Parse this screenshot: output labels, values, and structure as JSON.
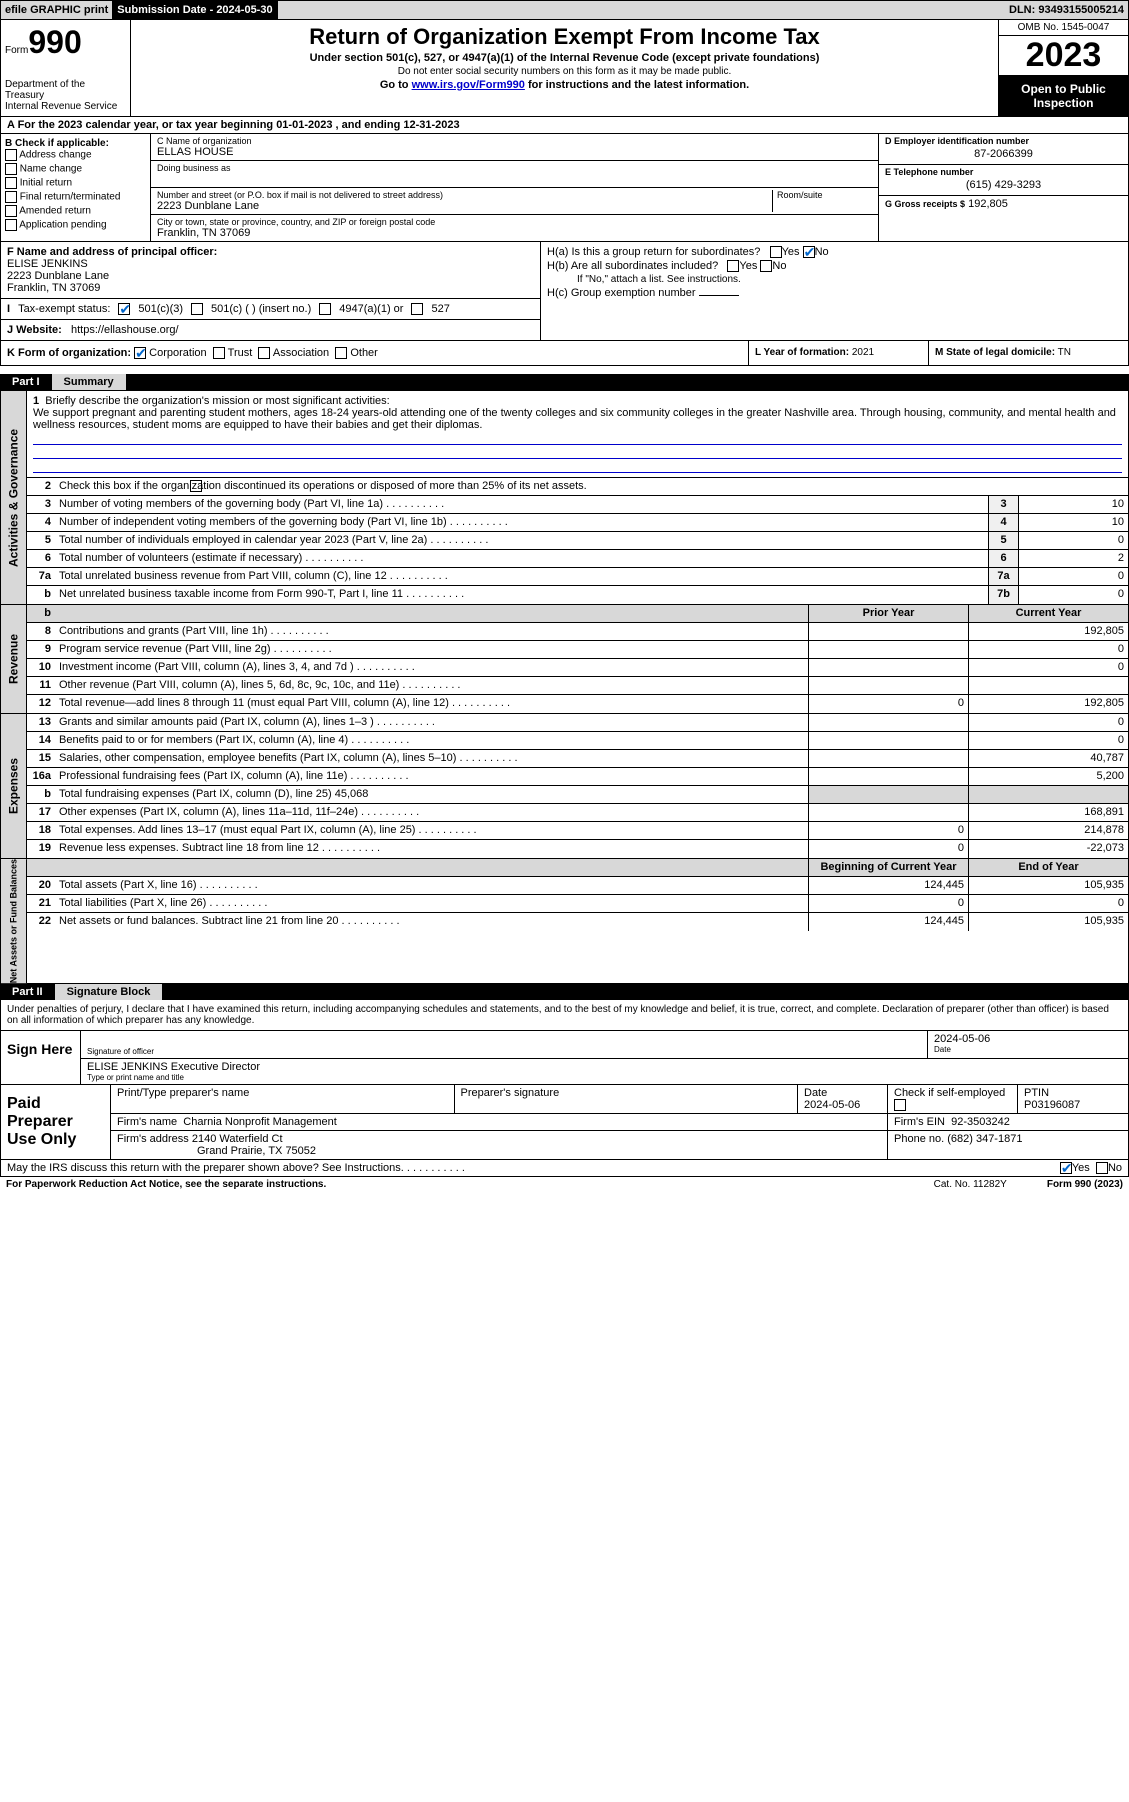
{
  "topbar": {
    "efile": "efile GRAPHIC print",
    "submission": "Submission Date - 2024-05-30",
    "dln": "DLN: 93493155005214"
  },
  "header": {
    "form_label": "Form",
    "form_no": "990",
    "title": "Return of Organization Exempt From Income Tax",
    "sub": "Under section 501(c), 527, or 4947(a)(1) of the Internal Revenue Code (except private foundations)",
    "sub2": "Do not enter social security numbers on this form as it may be made public.",
    "link_pre": "Go to ",
    "link": "www.irs.gov/Form990",
    "link_post": " for instructions and the latest information.",
    "dept": "Department of the Treasury\nInternal Revenue Service",
    "omb": "OMB No. 1545-0047",
    "year": "2023",
    "open": "Open to Public Inspection"
  },
  "section_a": "A  For the 2023 calendar year, or tax year beginning 01-01-2023    , and ending 12-31-2023",
  "b": {
    "label": "B Check if applicable:",
    "opts": [
      "Address change",
      "Name change",
      "Initial return",
      "Final return/terminated",
      "Amended return",
      "Application pending"
    ]
  },
  "c": {
    "name_lbl": "C Name of organization",
    "name": "ELLAS HOUSE",
    "dba_lbl": "Doing business as",
    "addr_lbl": "Number and street (or P.O. box if mail is not delivered to street address)",
    "room_lbl": "Room/suite",
    "addr": "2223 Dunblane Lane",
    "city_lbl": "City or town, state or province, country, and ZIP or foreign postal code",
    "city": "Franklin, TN  37069"
  },
  "d": {
    "lbl": "D Employer identification number",
    "val": "87-2066399"
  },
  "e": {
    "lbl": "E Telephone number",
    "val": "(615) 429-3293"
  },
  "g": {
    "lbl": "G Gross receipts $",
    "val": "192,805"
  },
  "f": {
    "lbl": "F  Name and address of principal officer:",
    "name": "ELISE JENKINS",
    "addr1": "2223 Dunblane Lane",
    "addr2": "Franklin, TN  37069"
  },
  "i": {
    "lbl": "Tax-exempt status:",
    "o1": "501(c)(3)",
    "o2": "501(c) (  ) (insert no.)",
    "o3": "4947(a)(1) or",
    "o4": "527"
  },
  "j": {
    "lbl": "J     Website:",
    "val": "https://ellashouse.org/"
  },
  "h": {
    "a": "H(a)  Is this a group return for subordinates?",
    "b": "H(b)  Are all subordinates included?",
    "bnote": "If \"No,\" attach a list. See instructions.",
    "c": "H(c)  Group exemption number"
  },
  "k": {
    "lbl": "K Form of organization:",
    "o1": "Corporation",
    "o2": "Trust",
    "o3": "Association",
    "o4": "Other"
  },
  "l": {
    "lbl": "L Year of formation:",
    "val": "2021"
  },
  "m": {
    "lbl": "M State of legal domicile:",
    "val": "TN"
  },
  "part1": {
    "num": "Part I",
    "title": "Summary"
  },
  "summary": {
    "q1": "Briefly describe the organization's mission or most significant activities:",
    "mission": "We support pregnant and parenting student mothers, ages 18-24 years-old attending one of the twenty colleges and six community colleges in the greater Nashville area. Through housing, community, and mental health and wellness resources, student moms are equipped to have their babies and get their diplomas.",
    "q2": "Check this box        if the organization discontinued its operations or disposed of more than 25% of its net assets.",
    "rows_gov": [
      {
        "n": "3",
        "d": "Number of voting members of the governing body (Part VI, line 1a)",
        "ln": "3",
        "v": "10"
      },
      {
        "n": "4",
        "d": "Number of independent voting members of the governing body (Part VI, line 1b)",
        "ln": "4",
        "v": "10"
      },
      {
        "n": "5",
        "d": "Total number of individuals employed in calendar year 2023 (Part V, line 2a)",
        "ln": "5",
        "v": "0"
      },
      {
        "n": "6",
        "d": "Total number of volunteers (estimate if necessary)",
        "ln": "6",
        "v": "2"
      },
      {
        "n": "7a",
        "d": "Total unrelated business revenue from Part VIII, column (C), line 12",
        "ln": "7a",
        "v": "0"
      },
      {
        "n": "b",
        "d": "Net unrelated business taxable income from Form 990-T, Part I, line 11",
        "ln": "7b",
        "v": "0"
      }
    ],
    "col_prior": "Prior Year",
    "col_curr": "Current Year",
    "rows_rev": [
      {
        "n": "8",
        "d": "Contributions and grants (Part VIII, line 1h)",
        "p": "",
        "c": "192,805"
      },
      {
        "n": "9",
        "d": "Program service revenue (Part VIII, line 2g)",
        "p": "",
        "c": "0"
      },
      {
        "n": "10",
        "d": "Investment income (Part VIII, column (A), lines 3, 4, and 7d )",
        "p": "",
        "c": "0"
      },
      {
        "n": "11",
        "d": "Other revenue (Part VIII, column (A), lines 5, 6d, 8c, 9c, 10c, and 11e)",
        "p": "",
        "c": ""
      },
      {
        "n": "12",
        "d": "Total revenue—add lines 8 through 11 (must equal Part VIII, column (A), line 12)",
        "p": "0",
        "c": "192,805"
      }
    ],
    "rows_exp": [
      {
        "n": "13",
        "d": "Grants and similar amounts paid (Part IX, column (A), lines 1–3 )",
        "p": "",
        "c": "0"
      },
      {
        "n": "14",
        "d": "Benefits paid to or for members (Part IX, column (A), line 4)",
        "p": "",
        "c": "0"
      },
      {
        "n": "15",
        "d": "Salaries, other compensation, employee benefits (Part IX, column (A), lines 5–10)",
        "p": "",
        "c": "40,787"
      },
      {
        "n": "16a",
        "d": "Professional fundraising fees (Part IX, column (A), line 11e)",
        "p": "",
        "c": "5,200"
      },
      {
        "n": "b",
        "d": "Total fundraising expenses (Part IX, column (D), line 25) 45,068",
        "p": "shade",
        "c": "shade"
      },
      {
        "n": "17",
        "d": "Other expenses (Part IX, column (A), lines 11a–11d, 11f–24e)",
        "p": "",
        "c": "168,891"
      },
      {
        "n": "18",
        "d": "Total expenses. Add lines 13–17 (must equal Part IX, column (A), line 25)",
        "p": "0",
        "c": "214,878"
      },
      {
        "n": "19",
        "d": "Revenue less expenses. Subtract line 18 from line 12",
        "p": "0",
        "c": "-22,073"
      }
    ],
    "col_beg": "Beginning of Current Year",
    "col_end": "End of Year",
    "rows_net": [
      {
        "n": "20",
        "d": "Total assets (Part X, line 16)",
        "p": "124,445",
        "c": "105,935"
      },
      {
        "n": "21",
        "d": "Total liabilities (Part X, line 26)",
        "p": "0",
        "c": "0"
      },
      {
        "n": "22",
        "d": "Net assets or fund balances. Subtract line 21 from line 20",
        "p": "124,445",
        "c": "105,935"
      }
    ],
    "side_gov": "Activities & Governance",
    "side_rev": "Revenue",
    "side_exp": "Expenses",
    "side_net": "Net Assets or Fund Balances"
  },
  "part2": {
    "num": "Part II",
    "title": "Signature Block"
  },
  "sig": {
    "decl": "Under penalties of perjury, I declare that I have examined this return, including accompanying schedules and statements, and to the best of my knowledge and belief, it is true, correct, and complete. Declaration of preparer (other than officer) is based on all information of which preparer has any knowledge.",
    "sign_here": "Sign Here",
    "sig_lbl": "Signature of officer",
    "date_lbl": "Date",
    "date_val": "2024-05-06",
    "name": "ELISE JENKINS Executive Director",
    "name_lbl": "Type or print name and title",
    "paid": "Paid Preparer Use Only",
    "pt_name_lbl": "Print/Type preparer's name",
    "pt_sig_lbl": "Preparer's signature",
    "pt_date_lbl": "Date",
    "pt_date": "2024-05-06",
    "pt_check": "Check         if self-employed",
    "ptin_lbl": "PTIN",
    "ptin": "P03196087",
    "firm_name_lbl": "Firm's name",
    "firm_name": "Charnia Nonprofit Management",
    "firm_ein_lbl": "Firm's EIN",
    "firm_ein": "92-3503242",
    "firm_addr_lbl": "Firm's address",
    "firm_addr1": "2140 Waterfield Ct",
    "firm_addr2": "Grand Prairie, TX  75052",
    "firm_phone_lbl": "Phone no.",
    "firm_phone": "(682) 347-1871",
    "discuss": "May the IRS discuss this return with the preparer shown above? See Instructions."
  },
  "footer": {
    "pra": "For Paperwork Reduction Act Notice, see the separate instructions.",
    "cat": "Cat. No. 11282Y",
    "form": "Form 990 (2023)"
  },
  "yesno": {
    "yes": "Yes",
    "no": "No"
  }
}
